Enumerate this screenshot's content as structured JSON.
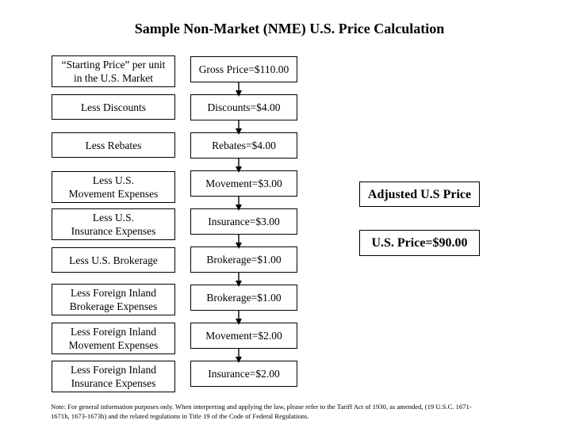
{
  "title": "Sample Non-Market (NME) U.S. Price Calculation",
  "rows": [
    {
      "label_lines": [
        "“Starting Price” per unit",
        "in the U.S. Market"
      ],
      "value": "Gross Price=$110.00"
    },
    {
      "label_lines": [
        "Less Discounts"
      ],
      "value": "Discounts=$4.00"
    },
    {
      "label_lines": [
        "Less Rebates"
      ],
      "value": "Rebates=$4.00"
    },
    {
      "label_lines": [
        "Less U.S.",
        "Movement Expenses"
      ],
      "value": "Movement=$3.00"
    },
    {
      "label_lines": [
        "Less U.S.",
        "Insurance Expenses"
      ],
      "value": "Insurance=$3.00"
    },
    {
      "label_lines": [
        "Less U.S. Brokerage"
      ],
      "value": "Brokerage=$1.00"
    },
    {
      "label_lines": [
        "Less Foreign Inland",
        "Brokerage Expenses"
      ],
      "value": "Brokerage=$1.00"
    },
    {
      "label_lines": [
        "Less Foreign Inland",
        "Movement Expenses"
      ],
      "value": "Movement=$2.00"
    },
    {
      "label_lines": [
        "Less Foreign Inland",
        "Insurance Expenses"
      ],
      "value": "Insurance=$2.00"
    }
  ],
  "adjusted": {
    "title": "Adjusted U.S Price",
    "value": "U.S. Price=$90.00"
  },
  "note_lines": [
    "Note: For general information purposes only. When interpreting and applying the law, please refer to the Tariff Act of 1930, as amended, (19 U.S.C. 1671-",
    "1671h, 1673-1673h) and the related regulations in Title 19 of the Code of Federal Regulations."
  ]
}
